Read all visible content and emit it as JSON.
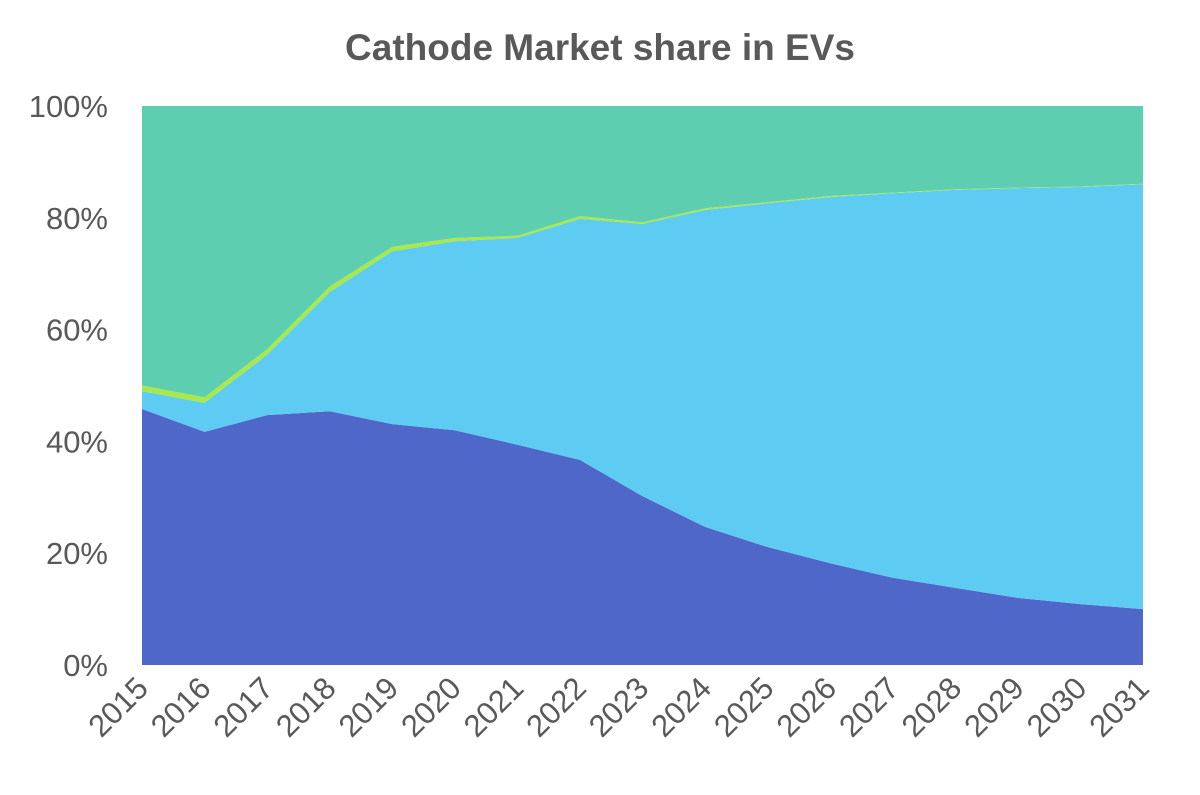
{
  "chart_data": {
    "type": "area",
    "stacked": "percent",
    "title": "Cathode Market share in EVs",
    "xlabel": "",
    "ylabel": "",
    "ylim": [
      0,
      100
    ],
    "yticks": [
      "0%",
      "20%",
      "40%",
      "60%",
      "80%",
      "100%"
    ],
    "categories": [
      "2015",
      "2016",
      "2017",
      "2018",
      "2019",
      "2020",
      "2021",
      "2022",
      "2023",
      "2024",
      "2025",
      "2026",
      "2027",
      "2028",
      "2029",
      "2030",
      "2031"
    ],
    "grid": false,
    "legend": "none",
    "series": [
      {
        "color": "#4F67C8",
        "values": [
          45.8,
          41.7,
          44.7,
          45.4,
          43.1,
          42.0,
          39.4,
          36.7,
          30.2,
          24.7,
          21.1,
          18.2,
          15.6,
          13.8,
          12.0,
          10.9,
          10.0
        ]
      },
      {
        "color": "#5DCBF2",
        "values": [
          3.2,
          5.2,
          10.8,
          21.3,
          30.9,
          33.8,
          37.0,
          43.1,
          48.7,
          56.7,
          61.5,
          65.5,
          68.8,
          71.2,
          73.3,
          74.6,
          76.0
        ]
      },
      {
        "color": "#A8E84A",
        "values": [
          1.0,
          1.0,
          1.0,
          1.0,
          0.8,
          0.6,
          0.4,
          0.5,
          0.3,
          0.3,
          0.2,
          0.2,
          0.1,
          0.1,
          0.1,
          0.1,
          0.1
        ]
      },
      {
        "color": "#5ECEB0",
        "values": [
          50.0,
          52.1,
          43.5,
          32.3,
          25.2,
          23.6,
          23.2,
          19.7,
          20.8,
          18.3,
          17.2,
          16.1,
          15.5,
          14.9,
          14.6,
          14.4,
          13.9
        ]
      }
    ]
  }
}
